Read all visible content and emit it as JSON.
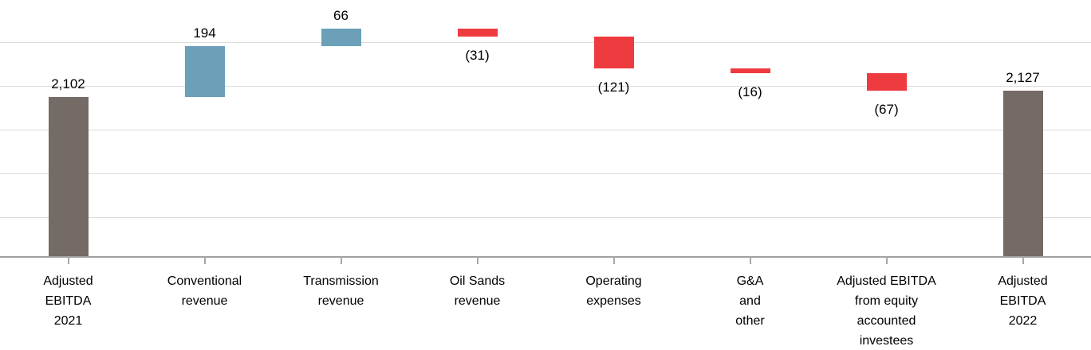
{
  "chart_data": {
    "type": "bar",
    "variant": "waterfall",
    "title": "",
    "legend": "none",
    "axis": {
      "y_axis_labels_visible": false,
      "y_gridlines": true,
      "x_tick_marks": "category-centers"
    },
    "categories": [
      "Adjusted EBITDA 2021",
      "Conventional revenue",
      "Transmission revenue",
      "Oil Sands revenue",
      "Operating expenses",
      "G&A and other",
      "Adjusted EBITDA from equity accounted investees",
      "Adjusted EBITDA 2022"
    ],
    "bars": [
      {
        "category_lines": [
          "Adjusted",
          "EBITDA",
          "2021"
        ],
        "value": 2102,
        "cumulative": 2102,
        "role": "total",
        "label": "2,102",
        "label_position": "above"
      },
      {
        "category_lines": [
          "Conventional",
          "revenue"
        ],
        "value": 194,
        "cumulative": 2296,
        "role": "increase",
        "label": "194",
        "label_position": "above"
      },
      {
        "category_lines": [
          "Transmission",
          "revenue"
        ],
        "value": 66,
        "cumulative": 2362,
        "role": "increase",
        "label": "66",
        "label_position": "above"
      },
      {
        "category_lines": [
          "Oil Sands",
          "revenue"
        ],
        "value": -31,
        "cumulative": 2331,
        "role": "decrease",
        "label": "(31)",
        "label_position": "below"
      },
      {
        "category_lines": [
          "Operating",
          "expenses"
        ],
        "value": -121,
        "cumulative": 2210,
        "role": "decrease",
        "label": "(121)",
        "label_position": "below"
      },
      {
        "category_lines": [
          "G&A",
          "and",
          "other"
        ],
        "value": -16,
        "cumulative": 2194,
        "role": "decrease",
        "label": "(16)",
        "label_position": "below"
      },
      {
        "category_lines": [
          "Adjusted EBITDA",
          "from equity",
          "accounted",
          "investees"
        ],
        "value": -67,
        "cumulative": 2127,
        "role": "decrease",
        "label": "(67)",
        "label_position": "below"
      },
      {
        "category_lines": [
          "Adjusted",
          "EBITDA",
          "2022"
        ],
        "value": 2127,
        "cumulative": 2127,
        "role": "total",
        "label": "2,127",
        "label_position": "above"
      }
    ],
    "colors": {
      "total": "#746A66",
      "increase": "#6BA0B8",
      "decrease": "#EE3B3F",
      "gridline": "#DCDCDC",
      "axis": "#A0A0A0",
      "label": "#000000",
      "background": "#FFFFFF"
    }
  }
}
